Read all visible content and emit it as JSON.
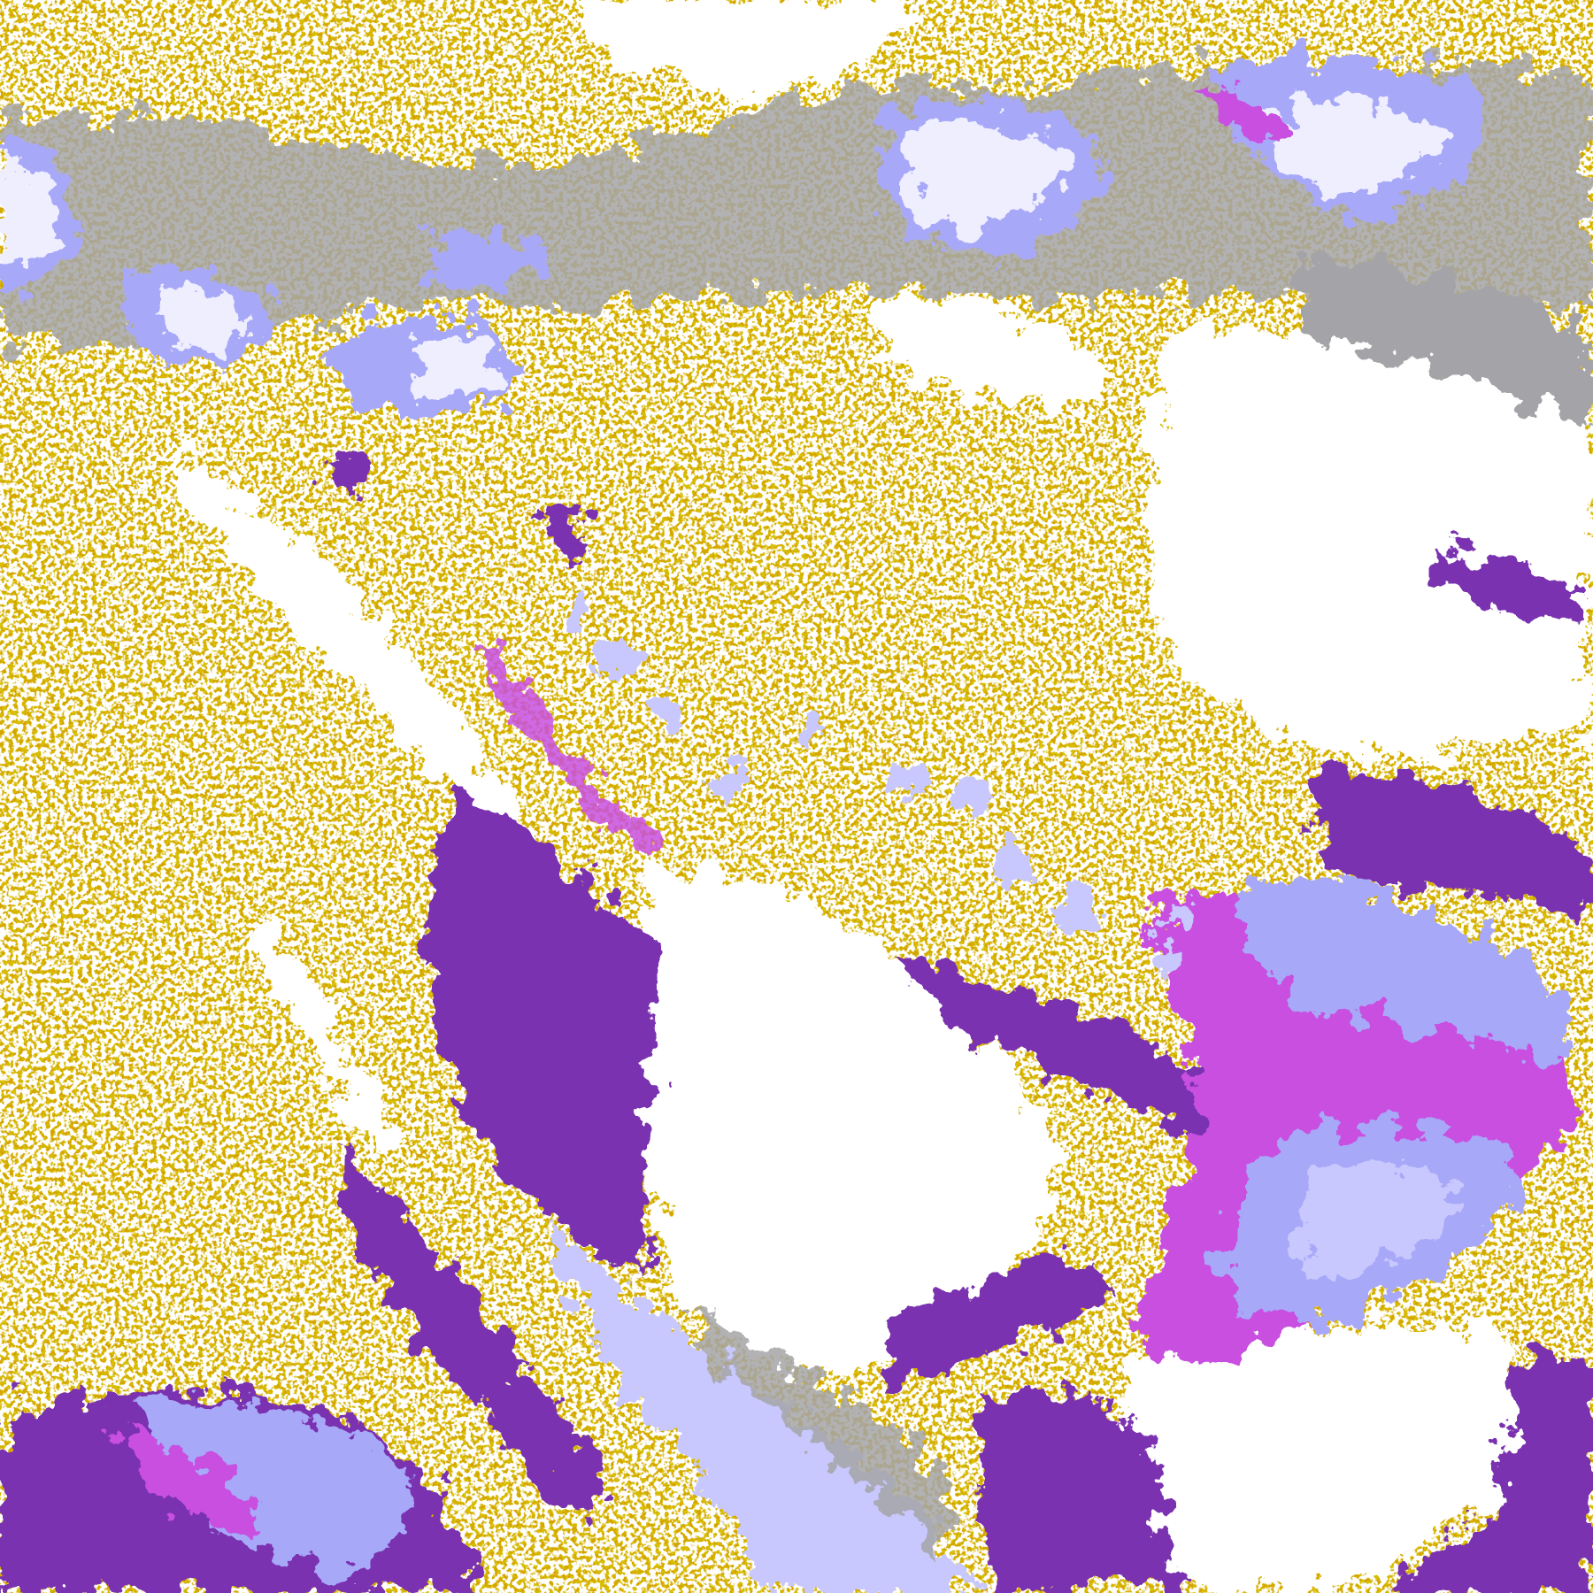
{
  "image": {
    "kind": "false-color satellite classification",
    "palette": {
      "clear": "#ffffff",
      "gold_low_cloud": "#d4a400",
      "gold_dark": "#b08400",
      "purple": "#7a30b0",
      "magenta": "#c850e0",
      "lavender": "#a8a8f8",
      "pale_lavender": "#c8c8ff",
      "white_lavender": "#eeeeff",
      "gray": "#a4a4a8"
    }
  }
}
